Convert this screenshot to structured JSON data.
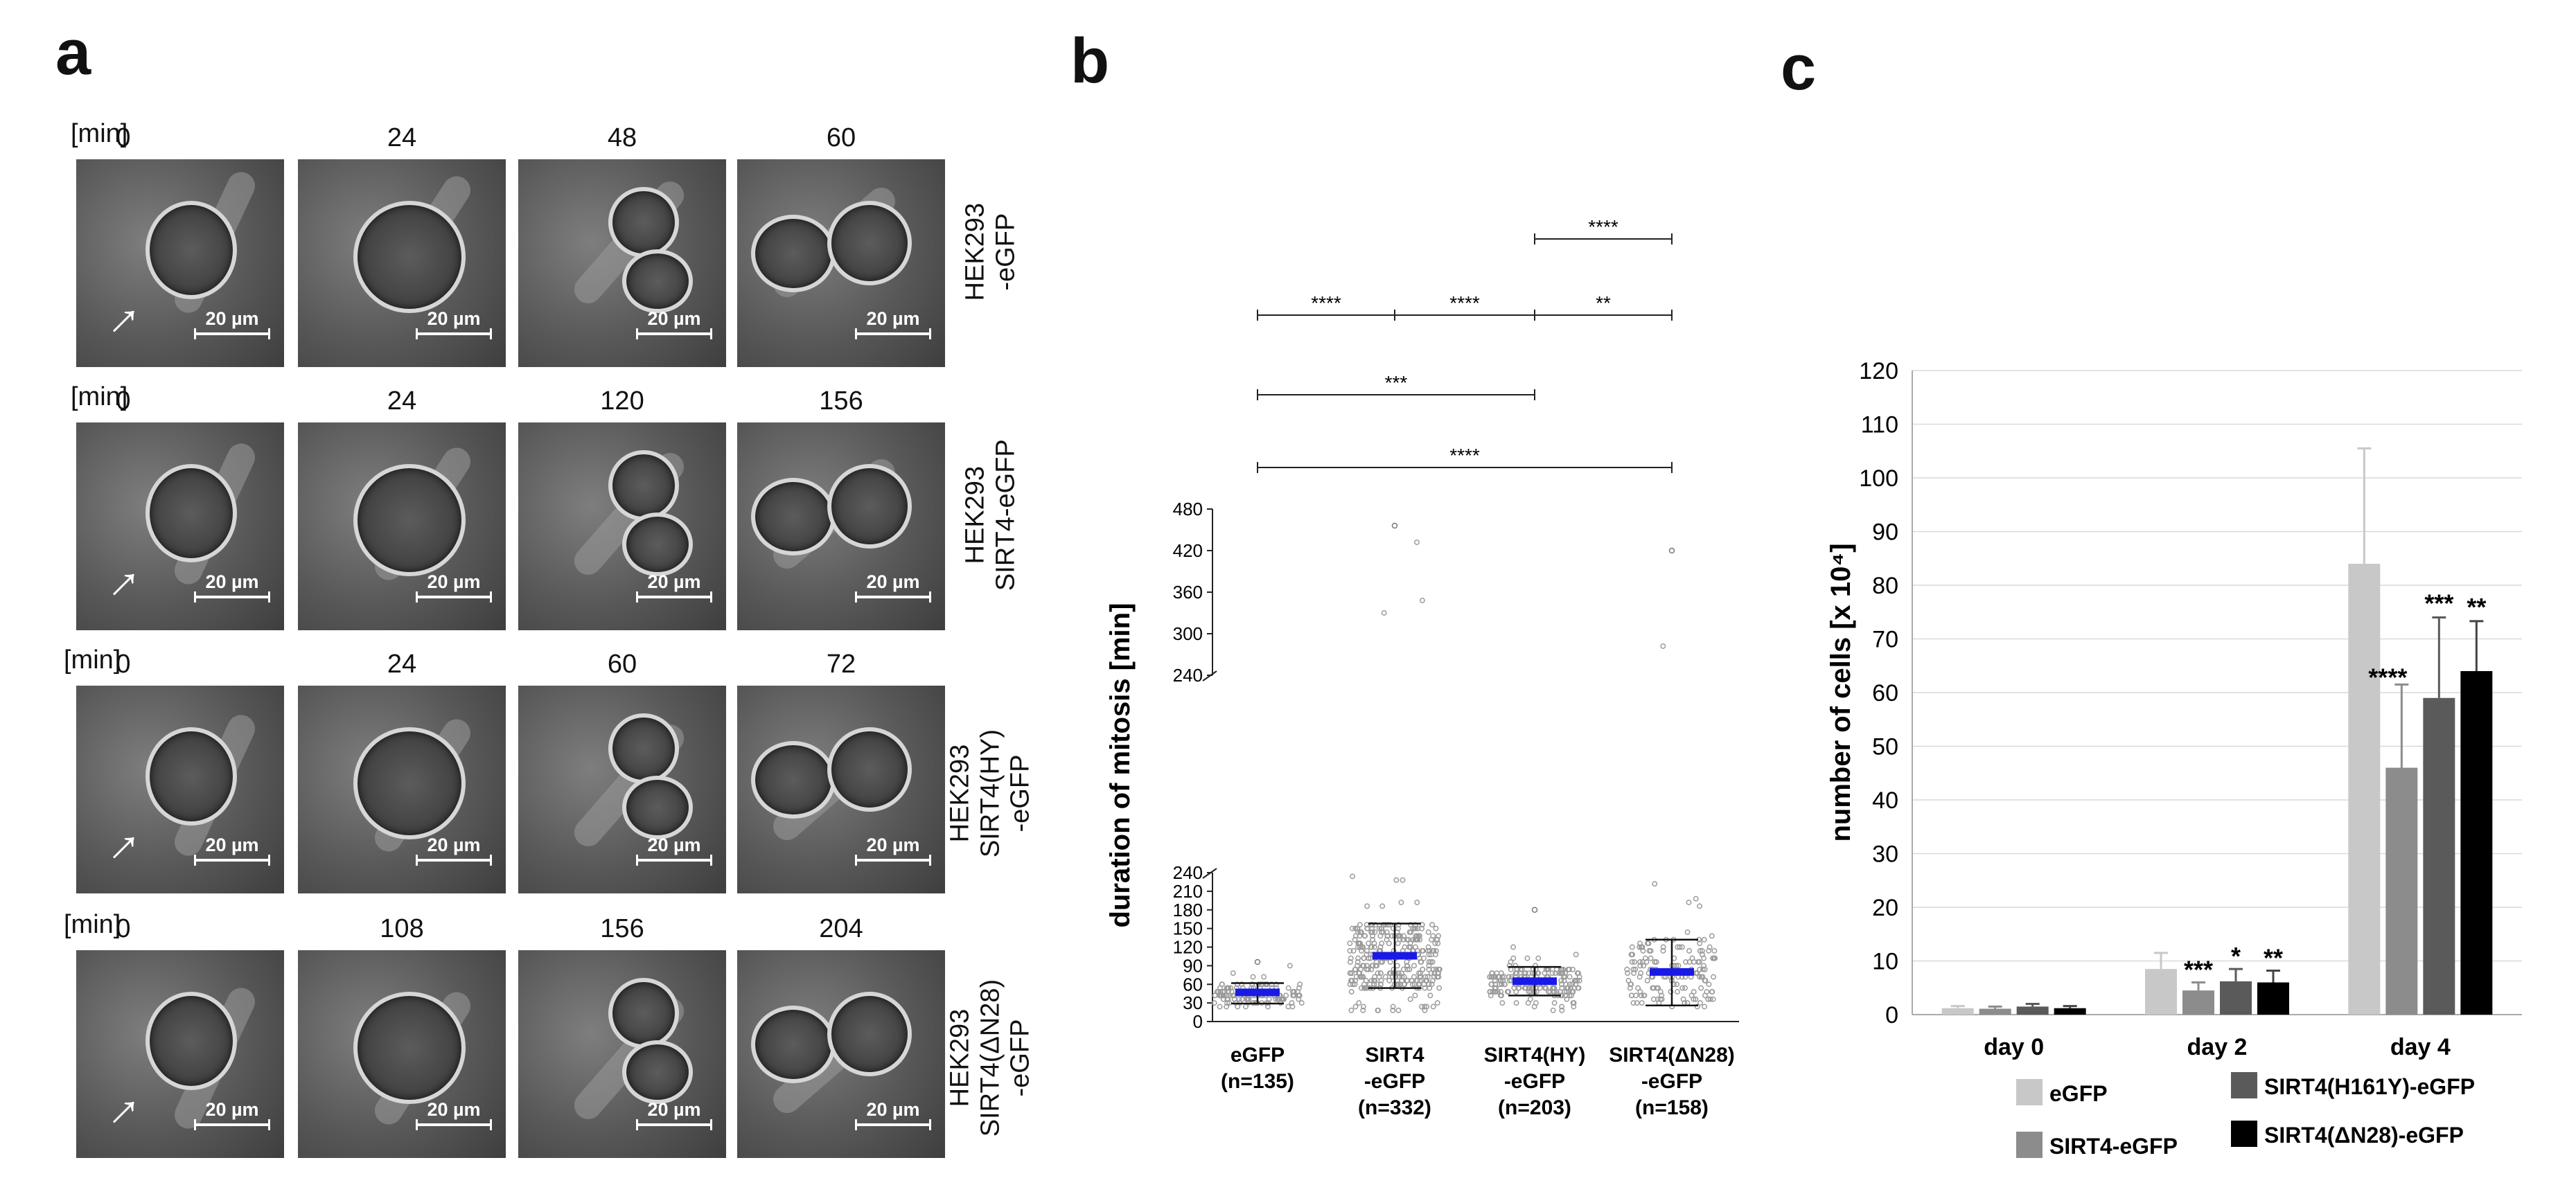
{
  "panel_letters": {
    "a": "a",
    "b": "b",
    "c": "c"
  },
  "panel_a": {
    "rows": [
      {
        "min_label": "[min]",
        "timepoints": [
          "0",
          "24",
          "48",
          "60"
        ],
        "label_line1": "HEK293",
        "label_line2": "-eGFP",
        "label_line3": "",
        "scale": "20 µm"
      },
      {
        "min_label": "[min]",
        "timepoints": [
          "0",
          "24",
          "120",
          "156"
        ],
        "label_line1": "HEK293",
        "label_line2": "SIRT4-eGFP",
        "label_line3": "",
        "scale": "20 µm"
      },
      {
        "min_label": "[min]",
        "timepoints": [
          "0",
          "24",
          "60",
          "72"
        ],
        "label_line1": "HEK293",
        "label_line2": "SIRT4(HY)",
        "label_line3": "-eGFP",
        "scale": "20 µm"
      },
      {
        "min_label": "[min]",
        "timepoints": [
          "0",
          "108",
          "156",
          "204"
        ],
        "label_line1": "HEK293",
        "label_line2": "SIRT4(ΔN28)",
        "label_line3": "-eGFP",
        "scale": "20 µm"
      }
    ]
  },
  "chart_data": [
    {
      "type": "scatter",
      "title": "",
      "ylabel": "duration of mitosis [min]",
      "ylim_lower": [
        0,
        240
      ],
      "ylim_upper": [
        240,
        480
      ],
      "yticks_lower": [
        "0",
        "30",
        "60",
        "90",
        "120",
        "150",
        "180",
        "210",
        "240"
      ],
      "yticks_upper": [
        "240",
        "300",
        "360",
        "420",
        "480"
      ],
      "categories": [
        "eGFP",
        "SIRT4",
        "SIRT4(HY)",
        "SIRT4(ΔN28)"
      ],
      "category_line2": [
        "(n=135)",
        "-eGFP",
        "-eGFP",
        "-eGFP"
      ],
      "category_line3": [
        "",
        "(n=332)",
        "(n=203)",
        "(n=158)"
      ],
      "n": [
        135,
        332,
        203,
        158
      ],
      "mean": [
        47,
        106,
        65,
        80
      ],
      "sd_low": [
        29,
        54,
        42,
        26
      ],
      "sd_high": [
        62,
        158,
        88,
        132
      ],
      "min": [
        24,
        18,
        18,
        24
      ],
      "max": [
        96,
        456,
        180,
        420
      ],
      "significance": [
        {
          "from": 2,
          "to": 3,
          "label": "****",
          "level": 0
        },
        {
          "from": 0,
          "to": 1,
          "label": "****",
          "level": 1
        },
        {
          "from": 1,
          "to": 2,
          "label": "****",
          "level": 1
        },
        {
          "from": 2,
          "to": 3,
          "label": "**",
          "level": 1
        },
        {
          "from": 0,
          "to": 2,
          "label": "***",
          "level": 2
        },
        {
          "from": 0,
          "to": 3,
          "label": "****",
          "level": 3
        }
      ]
    },
    {
      "type": "bar",
      "title": "",
      "ylabel": "number of cells [x 10⁴]",
      "ylim": [
        0,
        120
      ],
      "yticks": [
        "0",
        "10",
        "20",
        "30",
        "40",
        "50",
        "60",
        "70",
        "80",
        "90",
        "100",
        "110",
        "120"
      ],
      "categories": [
        "day 0",
        "day 2",
        "day 4"
      ],
      "series": [
        {
          "name": "eGFP",
          "color": "#c8c8c8",
          "values": [
            1.2,
            8.5,
            84
          ],
          "errors": [
            0.4,
            3,
            21.5
          ],
          "stars": [
            "",
            "",
            ""
          ]
        },
        {
          "name": "SIRT4-eGFP",
          "color": "#8c8c8c",
          "values": [
            1.1,
            4.5,
            46
          ],
          "errors": [
            0.4,
            1.5,
            15.5
          ],
          "stars": [
            "",
            "***",
            "****"
          ]
        },
        {
          "name": "SIRT4(H161Y)-eGFP",
          "color": "#5a5a5a",
          "values": [
            1.5,
            6.2,
            59
          ],
          "errors": [
            0.5,
            2.3,
            15
          ],
          "stars": [
            "",
            "*",
            "***"
          ]
        },
        {
          "name": "SIRT4(ΔN28)-eGFP",
          "color": "#000000",
          "values": [
            1.2,
            6.0,
            64
          ],
          "errors": [
            0.4,
            2.2,
            9.3
          ],
          "stars": [
            "",
            "**",
            "**"
          ]
        }
      ],
      "legend_position": "bottom"
    }
  ]
}
